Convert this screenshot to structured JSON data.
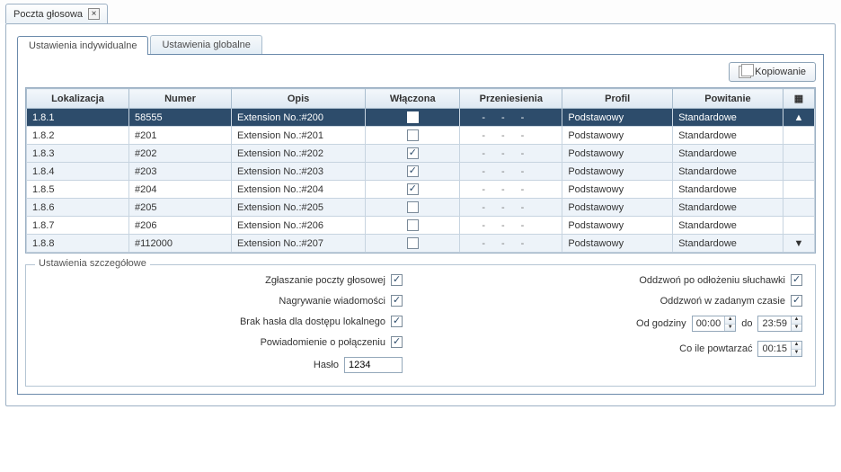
{
  "colors": {
    "selected_row_bg": "#2d4c6b",
    "alt_row_bg": "#edf3f9",
    "border": "#9cb0c4",
    "header_grad_top": "#f3f7fb",
    "header_grad_bot": "#dde8f2"
  },
  "window": {
    "tab_title": "Poczta głosowa"
  },
  "tabs": {
    "individual": "Ustawienia indywidualne",
    "global": "Ustawienia globalne"
  },
  "toolbar": {
    "copy_label": "Kopiowanie"
  },
  "grid": {
    "columns": {
      "lokalizacja": "Lokalizacja",
      "numer": "Numer",
      "opis": "Opis",
      "wlaczona": "Włączona",
      "przeniesienia": "Przeniesienia",
      "profil": "Profil",
      "powitanie": "Powitanie"
    },
    "rows": [
      {
        "lok": "1.8.1",
        "num": "58555",
        "opis": "Extension No.:#200",
        "on": true,
        "profil": "Podstawowy",
        "powit": "Standardowe",
        "sel": true,
        "alt": false
      },
      {
        "lok": "1.8.2",
        "num": "#201",
        "opis": "Extension No.:#201",
        "on": false,
        "profil": "Podstawowy",
        "powit": "Standardowe",
        "sel": false,
        "alt": false
      },
      {
        "lok": "1.8.3",
        "num": "#202",
        "opis": "Extension No.:#202",
        "on": true,
        "profil": "Podstawowy",
        "powit": "Standardowe",
        "sel": false,
        "alt": true
      },
      {
        "lok": "1.8.4",
        "num": "#203",
        "opis": "Extension No.:#203",
        "on": true,
        "profil": "Podstawowy",
        "powit": "Standardowe",
        "sel": false,
        "alt": true
      },
      {
        "lok": "1.8.5",
        "num": "#204",
        "opis": "Extension No.:#204",
        "on": true,
        "profil": "Podstawowy",
        "powit": "Standardowe",
        "sel": false,
        "alt": false
      },
      {
        "lok": "1.8.6",
        "num": "#205",
        "opis": "Extension No.:#205",
        "on": false,
        "profil": "Podstawowy",
        "powit": "Standardowe",
        "sel": false,
        "alt": true
      },
      {
        "lok": "1.8.7",
        "num": "#206",
        "opis": "Extension No.:#206",
        "on": false,
        "profil": "Podstawowy",
        "powit": "Standardowe",
        "sel": false,
        "alt": false
      },
      {
        "lok": "1.8.8",
        "num": "#112000",
        "opis": "Extension No.:#207",
        "on": false,
        "profil": "Podstawowy",
        "powit": "Standardowe",
        "sel": false,
        "alt": true
      }
    ]
  },
  "details": {
    "legend": "Ustawienia szczegółowe",
    "left": {
      "voicemail_report": {
        "label": "Zgłaszanie poczty głosowej",
        "checked": true
      },
      "record_msg": {
        "label": "Nagrywanie wiadomości",
        "checked": true
      },
      "no_pwd_local": {
        "label": "Brak hasła dla dostępu lokalnego",
        "checked": true
      },
      "call_notify": {
        "label": "Powiadomienie o połączeniu",
        "checked": true
      },
      "password": {
        "label": "Hasło",
        "value": "1234"
      }
    },
    "right": {
      "callback_hangup": {
        "label": "Oddzwoń po odłożeniu słuchawki",
        "checked": true
      },
      "callback_time": {
        "label": "Oddzwoń w zadanym czasie",
        "checked": true
      },
      "from_hour": {
        "label": "Od godziny",
        "value": "00:00"
      },
      "to_label": "do",
      "to_hour_value": "23:59",
      "repeat": {
        "label": "Co ile powtarzać",
        "value": "00:15"
      }
    }
  }
}
